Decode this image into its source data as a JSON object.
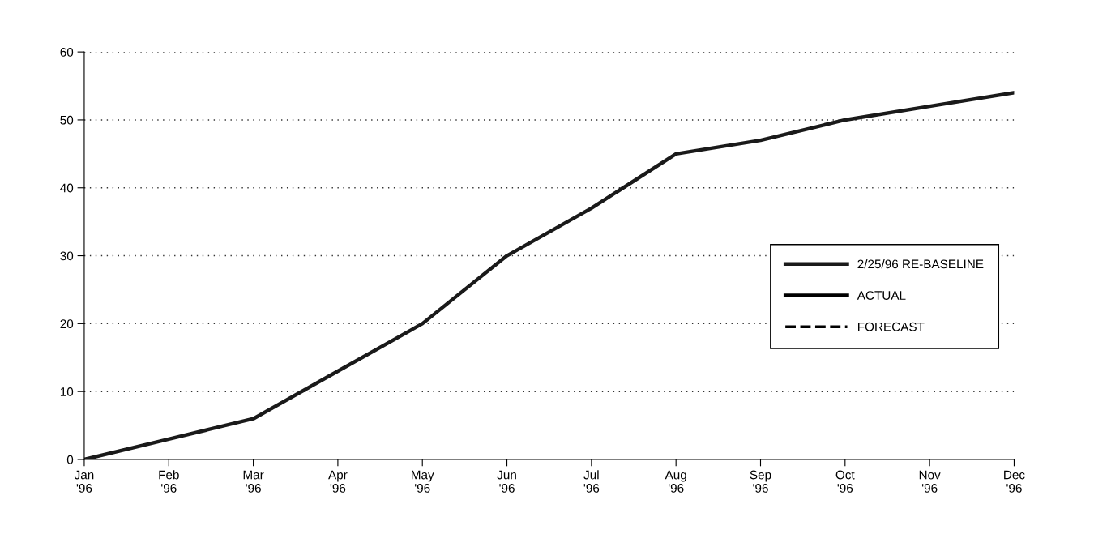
{
  "chart_data": {
    "type": "line",
    "categories": [
      "Jan\n'96",
      "Feb\n'96",
      "Mar\n'96",
      "Apr\n'96",
      "May\n'96",
      "Jun\n'96",
      "Jul\n'96",
      "Aug\n'96",
      "Sep\n'96",
      "Oct\n'96",
      "Nov\n'96",
      "Dec\n'96"
    ],
    "series": [
      {
        "name": "2/25/96 RE-BASELINE",
        "color": "#1a1a1a",
        "values": [
          0,
          3,
          6,
          13,
          20,
          30,
          37,
          45,
          47,
          50,
          52,
          54
        ],
        "line_style": "solid"
      },
      {
        "name": "ACTUAL",
        "color": "#000000",
        "values": [
          null,
          null,
          null,
          null,
          null,
          null,
          null,
          null,
          null,
          null,
          null,
          null
        ],
        "line_style": "solid"
      },
      {
        "name": "FORECAST",
        "color": "#000000",
        "values": [
          null,
          null,
          null,
          null,
          null,
          null,
          null,
          null,
          null,
          null,
          null,
          null
        ],
        "line_style": "dashed"
      }
    ],
    "ylim": [
      0,
      60
    ],
    "yticks": [
      0,
      10,
      20,
      30,
      40,
      50,
      60
    ],
    "grid": "y",
    "legend": "right",
    "marker": "none"
  }
}
